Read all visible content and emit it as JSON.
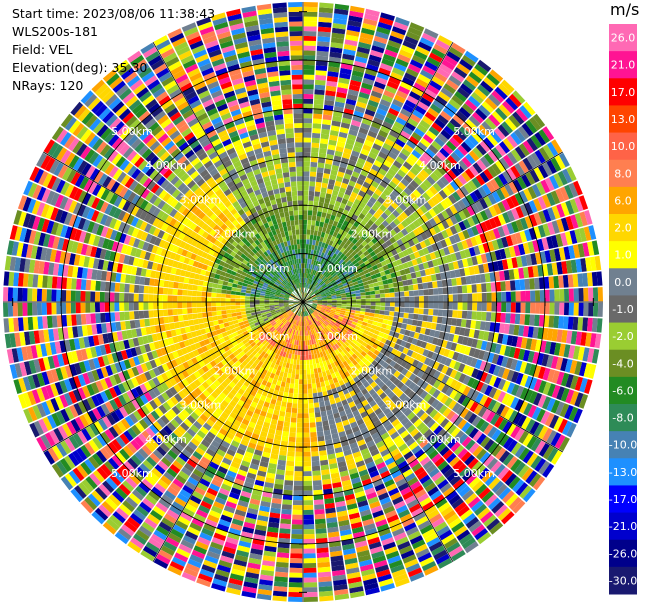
{
  "header": {
    "start_time": "Start time: 2023/08/06 11:38:43",
    "instrument": "WLS200s-181",
    "field": "Field: VEL",
    "elevation": "Elevation(deg): 35.30",
    "nrays": "NRays: 120"
  },
  "chart_data": {
    "type": "heatmap",
    "projection": "polar-ppi",
    "field": "VEL",
    "units": "m/s",
    "nrays": 120,
    "elevation_deg": 35.3,
    "max_range_km": 6.2,
    "range_rings_km": [
      1,
      2,
      3,
      4,
      5
    ],
    "ring_labels": [
      "1.00km",
      "2.00km",
      "3.00km",
      "4.00km",
      "5.00km"
    ],
    "azimuth_spokes_deg": [
      0,
      30,
      60,
      90,
      120,
      150,
      180,
      210,
      240,
      270,
      300,
      330
    ],
    "colorbar": {
      "label": "m/s",
      "tick_labels": [
        "26.0",
        "21.0",
        "17.0",
        "13.0",
        "10.0",
        "8.0",
        "6.0",
        "2.0",
        "1.0",
        "0.0",
        "-1.0",
        "-2.0",
        "-4.0",
        "-6.0",
        "-8.0",
        "-10.0",
        "-13.0",
        "-17.0",
        "-21.0",
        "-26.0",
        "-30.0"
      ],
      "colors": [
        "#ff69b4",
        "#ff1493",
        "#ff0000",
        "#ff4500",
        "#ff6347",
        "#ff7f50",
        "#ffa500",
        "#ffd700",
        "#ffff00",
        "#708090",
        "#696969",
        "#9acd32",
        "#6b8e23",
        "#228b22",
        "#2e8b57",
        "#4682b4",
        "#1e90ff",
        "#0000ff",
        "#0000cd",
        "#00008b",
        "#191970"
      ]
    },
    "description_hint": [
      {
        "range_km": [
          0,
          1.2
        ],
        "az_deg": [
          270,
          90
        ],
        "dominant": "-4.0 to -8.0"
      },
      {
        "range_km": [
          0,
          1.6
        ],
        "az_deg": [
          100,
          230
        ],
        "dominant": "6.0 to 10.0"
      },
      {
        "range_km": [
          1.0,
          3.0
        ],
        "az_deg": [
          180,
          300
        ],
        "dominant": "2.0"
      },
      {
        "range_km": [
          2.5,
          4.0
        ],
        "az_deg": [
          90,
          180
        ],
        "dominant": "0.0"
      },
      {
        "range_km": [
          4.0,
          6.2
        ],
        "az_deg": [
          0,
          360
        ],
        "dominant": "noise"
      }
    ]
  }
}
